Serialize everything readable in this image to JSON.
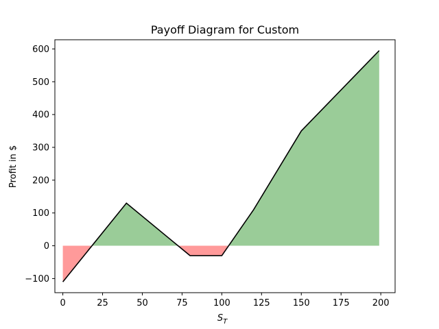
{
  "chart_data": {
    "type": "area",
    "title": "Payoff Diagram for Custom",
    "xlabel": "S",
    "xlabel_subscript": "T",
    "ylabel": "Profit in $",
    "xlim": [
      -5,
      209
    ],
    "ylim": [
      -143,
      628
    ],
    "xticks": [
      0,
      25,
      50,
      75,
      100,
      125,
      150,
      175,
      200
    ],
    "yticks": [
      -100,
      0,
      100,
      200,
      300,
      400,
      500,
      600
    ],
    "xtick_labels": [
      "0",
      "25",
      "50",
      "75",
      "100",
      "125",
      "150",
      "175",
      "200"
    ],
    "ytick_labels": [
      "−100",
      "0",
      "100",
      "200",
      "300",
      "400",
      "500",
      "600"
    ],
    "grid": false,
    "series": [
      {
        "x": [
          0,
          40,
          80,
          100,
          120,
          150,
          199
        ],
        "y": [
          -110,
          130,
          -30,
          -30,
          110,
          350,
          595
        ]
      }
    ],
    "fill_positive_color": "#9acc98",
    "fill_negative_color": "#ff9a9a",
    "line_color": "#000000"
  }
}
